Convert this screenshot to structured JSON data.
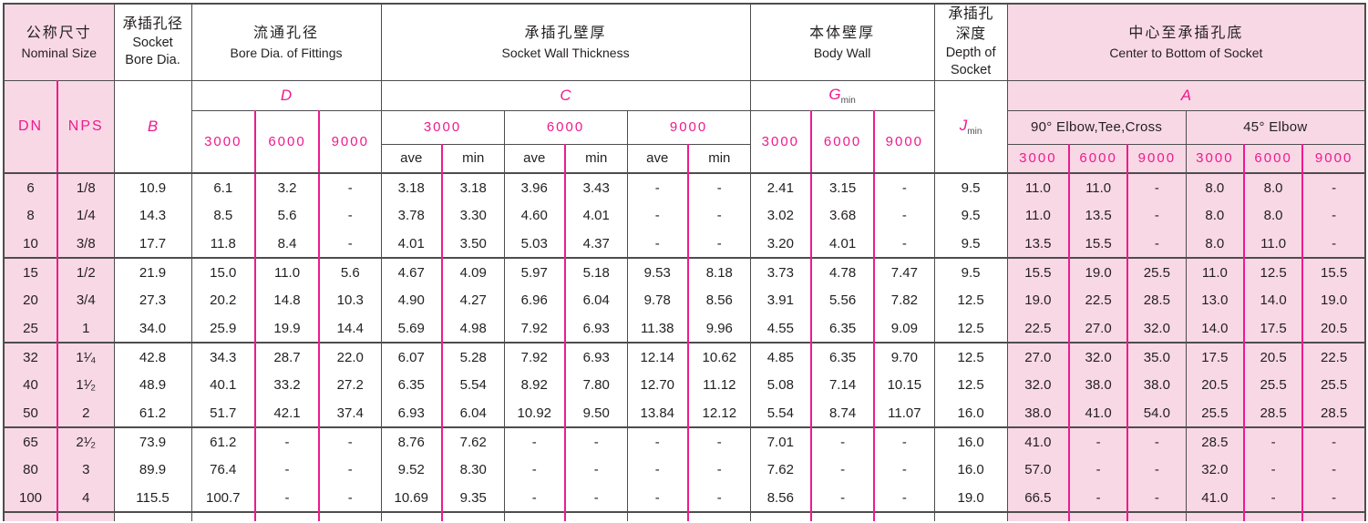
{
  "colors": {
    "magenta": "#ec1c8d",
    "pink_bg": "#f9d8e6",
    "ink": "#231f20",
    "line": "#4d4d4f"
  },
  "header": {
    "nominal_size_zh": "公称尺寸",
    "nominal_size_en": "Nominal Size",
    "dn": "DN",
    "nps": "NPS",
    "socket_bore_zh": "承插孔径",
    "socket_bore_en1": "Socket",
    "socket_bore_en2": "Bore Dia.",
    "socket_bore_sym": "B",
    "bore_fittings_zh": "流通孔径",
    "bore_fittings_en": "Bore Dia. of Fittings",
    "bore_fittings_sym": "D",
    "socket_wall_zh": "承插孔壁厚",
    "socket_wall_en": "Socket Wall Thickness",
    "socket_wall_sym": "C",
    "body_wall_zh": "本体壁厚",
    "body_wall_en": "Body Wall",
    "body_wall_sym": "G",
    "body_wall_sym_sub": "min",
    "socket_depth_zh1": "承插孔",
    "socket_depth_zh2": "深度",
    "socket_depth_en1": "Depth of",
    "socket_depth_en2": "Socket",
    "socket_depth_sym": "J",
    "socket_depth_sym_sub": "min",
    "center_zh": "中心至承插孔底",
    "center_en": "Center to Bottom of Socket",
    "center_sym": "A",
    "elbow90": "90° Elbow,Tee,Cross",
    "elbow45": "45° Elbow",
    "class_3000": "3000",
    "class_6000": "6000",
    "class_9000": "9000",
    "ave": "ave",
    "min": "min"
  },
  "rows": [
    {
      "cells": [
        "6",
        "1/8",
        "10.9",
        "6.1",
        "3.2",
        "-",
        "3.18",
        "3.18",
        "3.96",
        "3.43",
        "-",
        "-",
        "2.41",
        "3.15",
        "-",
        "9.5",
        "11.0",
        "11.0",
        "-",
        "8.0",
        "8.0",
        "-"
      ]
    },
    {
      "cells": [
        "8",
        "1/4",
        "14.3",
        "8.5",
        "5.6",
        "-",
        "3.78",
        "3.30",
        "4.60",
        "4.01",
        "-",
        "-",
        "3.02",
        "3.68",
        "-",
        "9.5",
        "11.0",
        "13.5",
        "-",
        "8.0",
        "8.0",
        "-"
      ]
    },
    {
      "cells": [
        "10",
        "3/8",
        "17.7",
        "11.8",
        "8.4",
        "-",
        "4.01",
        "3.50",
        "5.03",
        "4.37",
        "-",
        "-",
        "3.20",
        "4.01",
        "-",
        "9.5",
        "13.5",
        "15.5",
        "-",
        "8.0",
        "11.0",
        "-"
      ]
    },
    {
      "cells": [
        "15",
        "1/2",
        "21.9",
        "15.0",
        "11.0",
        "5.6",
        "4.67",
        "4.09",
        "5.97",
        "5.18",
        "9.53",
        "8.18",
        "3.73",
        "4.78",
        "7.47",
        "9.5",
        "15.5",
        "19.0",
        "25.5",
        "11.0",
        "12.5",
        "15.5"
      ]
    },
    {
      "cells": [
        "20",
        "3/4",
        "27.3",
        "20.2",
        "14.8",
        "10.3",
        "4.90",
        "4.27",
        "6.96",
        "6.04",
        "9.78",
        "8.56",
        "3.91",
        "5.56",
        "7.82",
        "12.5",
        "19.0",
        "22.5",
        "28.5",
        "13.0",
        "14.0",
        "19.0"
      ]
    },
    {
      "cells": [
        "25",
        "1",
        "34.0",
        "25.9",
        "19.9",
        "14.4",
        "5.69",
        "4.98",
        "7.92",
        "6.93",
        "11.38",
        "9.96",
        "4.55",
        "6.35",
        "9.09",
        "12.5",
        "22.5",
        "27.0",
        "32.0",
        "14.0",
        "17.5",
        "20.5"
      ]
    },
    {
      "cells": [
        "32",
        "1¹⁄₄",
        "42.8",
        "34.3",
        "28.7",
        "22.0",
        "6.07",
        "5.28",
        "7.92",
        "6.93",
        "12.14",
        "10.62",
        "4.85",
        "6.35",
        "9.70",
        "12.5",
        "27.0",
        "32.0",
        "35.0",
        "17.5",
        "20.5",
        "22.5"
      ]
    },
    {
      "cells": [
        "40",
        "1¹⁄₂",
        "48.9",
        "40.1",
        "33.2",
        "27.2",
        "6.35",
        "5.54",
        "8.92",
        "7.80",
        "12.70",
        "11.12",
        "5.08",
        "7.14",
        "10.15",
        "12.5",
        "32.0",
        "38.0",
        "38.0",
        "20.5",
        "25.5",
        "25.5"
      ]
    },
    {
      "cells": [
        "50",
        "2",
        "61.2",
        "51.7",
        "42.1",
        "37.4",
        "6.93",
        "6.04",
        "10.92",
        "9.50",
        "13.84",
        "12.12",
        "5.54",
        "8.74",
        "11.07",
        "16.0",
        "38.0",
        "41.0",
        "54.0",
        "25.5",
        "28.5",
        "28.5"
      ]
    },
    {
      "cells": [
        "65",
        "2¹⁄₂",
        "73.9",
        "61.2",
        "-",
        "-",
        "8.76",
        "7.62",
        "-",
        "-",
        "-",
        "-",
        "7.01",
        "-",
        "-",
        "16.0",
        "41.0",
        "-",
        "-",
        "28.5",
        "-",
        "-"
      ]
    },
    {
      "cells": [
        "80",
        "3",
        "89.9",
        "76.4",
        "-",
        "-",
        "9.52",
        "8.30",
        "-",
        "-",
        "-",
        "-",
        "7.62",
        "-",
        "-",
        "16.0",
        "57.0",
        "-",
        "-",
        "32.0",
        "-",
        "-"
      ]
    },
    {
      "cells": [
        "100",
        "4",
        "115.5",
        "100.7",
        "-",
        "-",
        "10.69",
        "9.35",
        "-",
        "-",
        "-",
        "-",
        "8.56",
        "-",
        "-",
        "19.0",
        "66.5",
        "-",
        "-",
        "41.0",
        "-",
        "-"
      ]
    }
  ]
}
